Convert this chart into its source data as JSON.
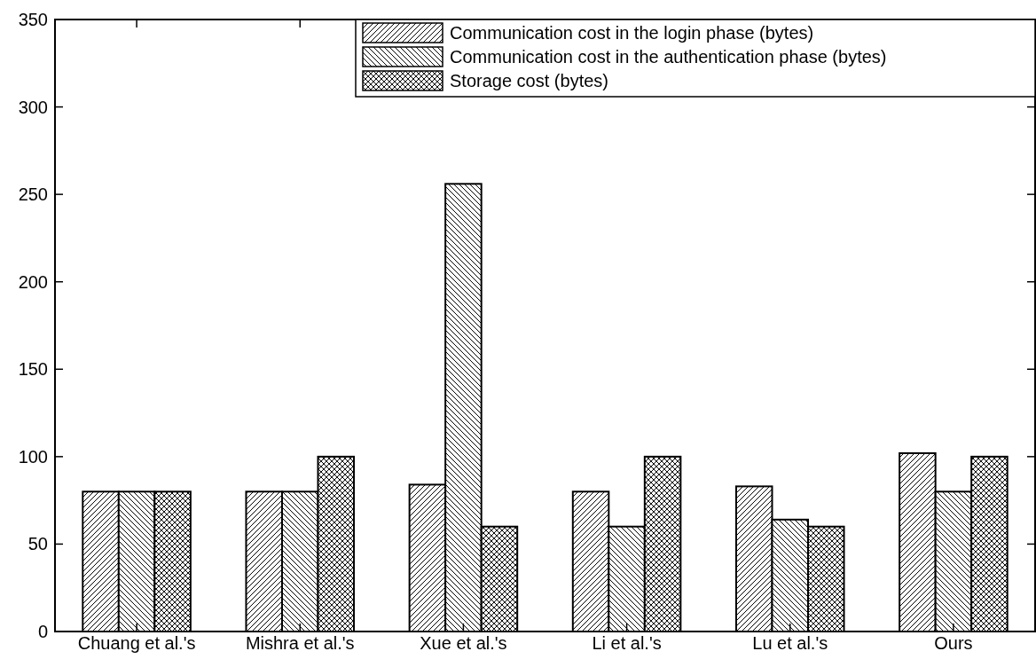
{
  "chart_data": {
    "type": "bar",
    "categories": [
      "Chuang et al.'s",
      "Mishra et al.'s",
      "Xue et al.'s",
      "Li et al.'s",
      "Lu et al.'s",
      "Ours"
    ],
    "series": [
      {
        "name": "Communication cost in the login phase (bytes)",
        "color": "#000000",
        "values": [
          80,
          80,
          84,
          80,
          83,
          102
        ]
      },
      {
        "name": "Communication cost in the authentication phase (bytes)",
        "color": "#000000",
        "values": [
          80,
          80,
          256,
          60,
          64,
          80
        ]
      },
      {
        "name": "Storage cost (bytes)",
        "color": "#000000",
        "values": [
          80,
          100,
          60,
          100,
          60,
          100
        ]
      }
    ],
    "ylim": [
      0,
      350
    ],
    "yticks": [
      0,
      50,
      100,
      150,
      200,
      250,
      300,
      350
    ],
    "grid": false,
    "legend": "top right"
  }
}
